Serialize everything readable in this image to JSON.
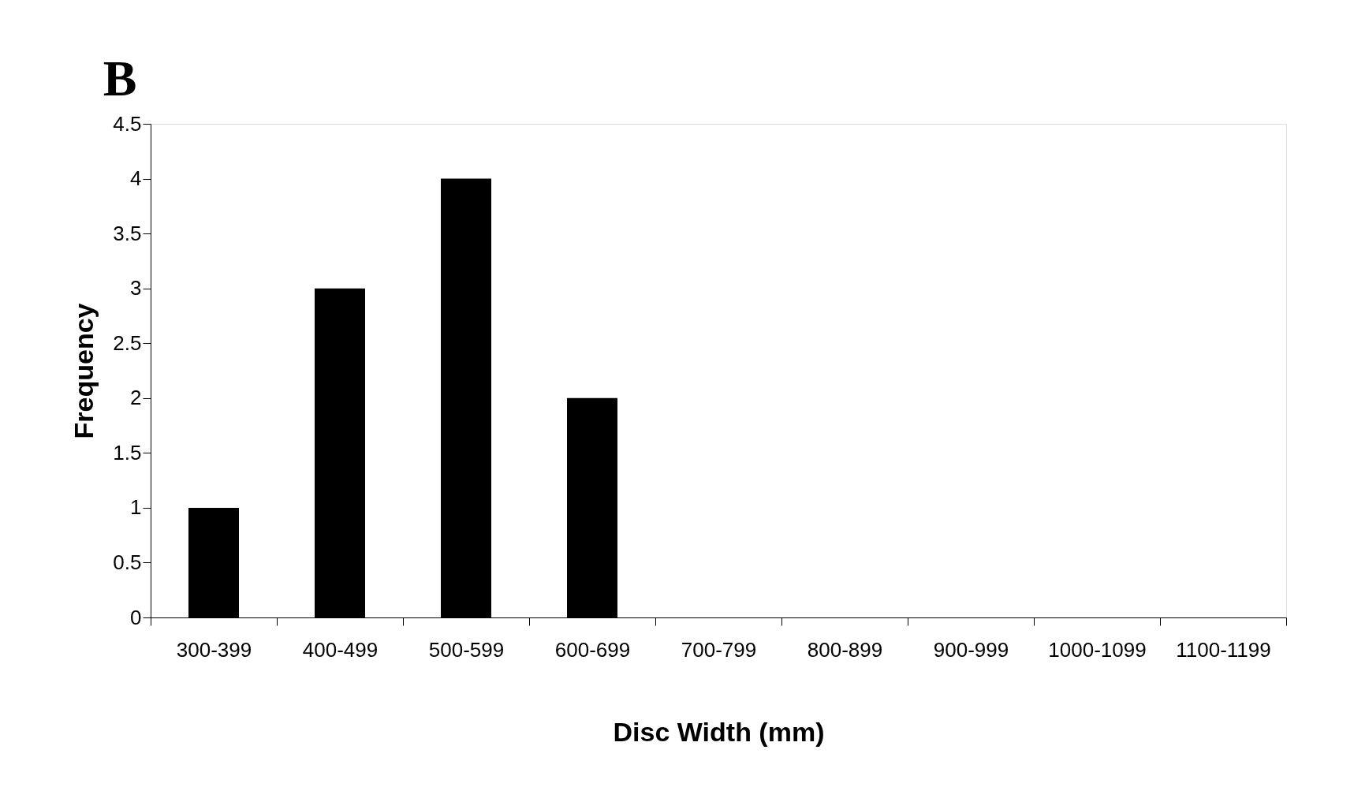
{
  "chart_data": {
    "type": "bar",
    "title": "B",
    "xlabel": "Disc Width (mm)",
    "ylabel": "Frequency",
    "categories": [
      "300-399",
      "400-499",
      "500-599",
      "600-699",
      "700-799",
      "800-899",
      "900-999",
      "1000-1099",
      "1100-1199"
    ],
    "values": [
      1,
      3,
      4,
      2,
      0,
      0,
      0,
      0,
      0
    ],
    "color": "#000000",
    "ylim": [
      0,
      4.5
    ],
    "yticks": [
      0,
      0.5,
      1,
      1.5,
      2,
      2.5,
      3,
      3.5,
      4,
      4.5
    ],
    "grid": false
  }
}
